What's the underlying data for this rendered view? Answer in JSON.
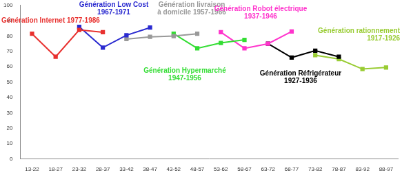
{
  "chart_data": {
    "type": "line",
    "categories": [
      "13-22",
      "18-27",
      "23-32",
      "28-37",
      "33-42",
      "38-47",
      "43-52",
      "48-57",
      "53-62",
      "58-67",
      "63-72",
      "68-77",
      "73-82",
      "78-87",
      "83-92",
      "88-97"
    ],
    "series": [
      {
        "name": "Génération Internet 1977-1986",
        "color": "#e8312f",
        "values": [
          81.5,
          66.5,
          84,
          82.5,
          null,
          null,
          null,
          null,
          null,
          null,
          null,
          null,
          null,
          null,
          null,
          null
        ]
      },
      {
        "name": "Génération Low Cost\n1967-1971",
        "color": "#2b2bd0",
        "values": [
          null,
          null,
          86,
          72.5,
          80.5,
          85.5,
          null,
          null,
          null,
          null,
          null,
          null,
          null,
          null,
          null,
          null
        ]
      },
      {
        "name": "Génération livraison\nà domicile 1957-1966",
        "color": "#999999",
        "values": [
          null,
          null,
          null,
          null,
          78,
          79.5,
          80,
          81.5,
          null,
          null,
          null,
          null,
          null,
          null,
          null,
          null
        ]
      },
      {
        "name": "Génération Hypermarché\n1947-1956",
        "color": "#33dd33",
        "values": [
          null,
          null,
          null,
          null,
          null,
          null,
          81.5,
          72,
          75.5,
          77.5,
          null,
          null,
          null,
          null,
          null,
          null
        ]
      },
      {
        "name": "Génération Robot électrique\n1937-1946",
        "color": "#ff33cc",
        "values": [
          null,
          null,
          null,
          null,
          null,
          null,
          null,
          null,
          82.5,
          72,
          75,
          83,
          null,
          null,
          null,
          null
        ]
      },
      {
        "name": "Génération Réfrigérateur\n1927-1936",
        "color": "#000000",
        "values": [
          null,
          null,
          null,
          null,
          null,
          null,
          null,
          null,
          null,
          null,
          75,
          66,
          70.5,
          66.5,
          null,
          null
        ]
      },
      {
        "name": "Génération rationnement\n1917-1926",
        "color": "#99cc33",
        "values": [
          null,
          null,
          null,
          null,
          null,
          null,
          null,
          null,
          null,
          null,
          null,
          null,
          67.5,
          65,
          58.5,
          59.5
        ]
      }
    ],
    "ylim": [
      0,
      100
    ],
    "yticks": [
      0,
      10,
      20,
      30,
      40,
      50,
      60,
      70,
      80,
      90,
      100
    ],
    "grid": false,
    "marker": "square"
  }
}
